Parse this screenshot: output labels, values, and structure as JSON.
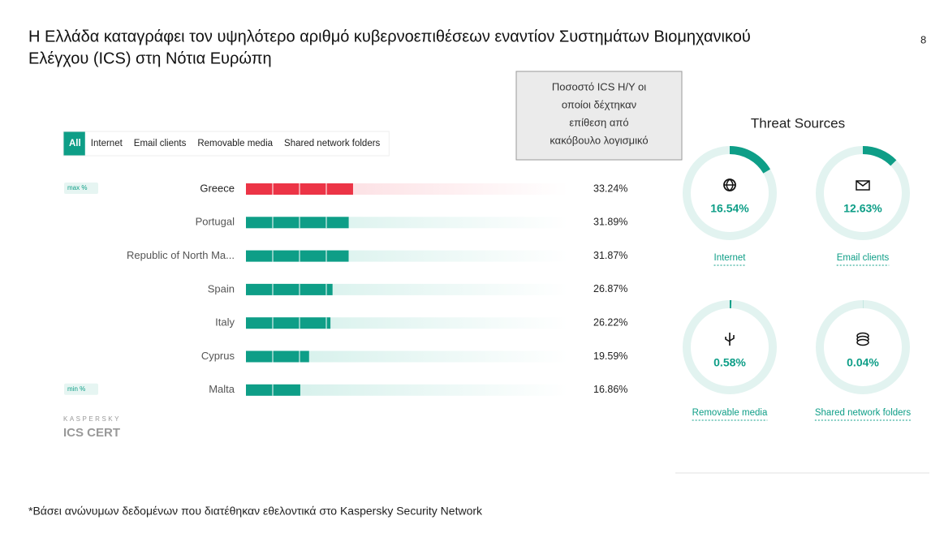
{
  "title": [
    "Η Ελλάδα καταγράφει τον υψηλότερο αριθμό κυβερνοεπιθέσεων εναντίον Συστημάτων Βιομηχανικού",
    "Ελέγχου (ICS) στη Νότια Ευρώπη"
  ],
  "page_number": "8",
  "note": [
    "Ποσοστό ICS Η/Υ οι",
    "οποίοι δέχτηκαν",
    "επίθεση από",
    "κακόβουλο λογισμικό"
  ],
  "tabs": [
    "All",
    "Internet",
    "Email clients",
    "Removable media",
    "Shared network folders"
  ],
  "logo": {
    "brand": "KASPERSKY",
    "name": "ICS CERT"
  },
  "footnote": "*Βάσει ανώνυμων δεδομένων που διατέθηκαν εθελοντικά στο Kaspersky Security Network",
  "chart_data": [
    {
      "type": "bar",
      "categories": [
        "Greece",
        "Portugal",
        "Republic of North Ma...",
        "Spain",
        "Italy",
        "Cyprus",
        "Malta"
      ],
      "values": [
        33.24,
        31.89,
        31.87,
        26.87,
        26.22,
        19.59,
        16.86
      ],
      "value_labels": [
        "33.24%",
        "31.89%",
        "31.87%",
        "26.87%",
        "26.22%",
        "19.59%",
        "16.86%"
      ],
      "max_label": "max %",
      "min_label": "min %",
      "color": "#0e9e87",
      "highlight_color": "#ec3446",
      "xlim": [
        0,
        100
      ]
    },
    {
      "type": "gauge",
      "title": "Threat Sources",
      "categories": [
        "Internet",
        "Email clients",
        "Removable media",
        "Shared network folders"
      ],
      "values": [
        16.54,
        12.63,
        0.58,
        0.04
      ],
      "value_labels": [
        "16.54%",
        "12.63%",
        "0.58%",
        "0.04%"
      ],
      "color": "#0e9e87",
      "ylim": [
        0,
        100
      ]
    }
  ]
}
